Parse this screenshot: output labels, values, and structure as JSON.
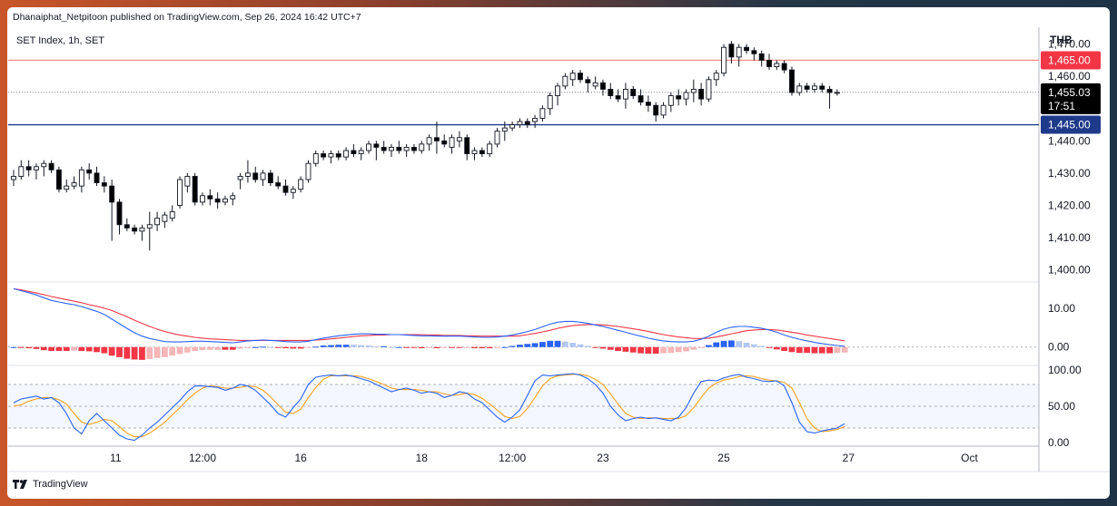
{
  "header": {
    "publisher": "Dhanaiphat_Netpitoon published on TradingView.com, Sep 26, 2024 16:42 UTC+7"
  },
  "footer": {
    "brand": "TradingView"
  },
  "colors": {
    "up": "#ffffff",
    "down": "#000000",
    "resistance": "#f2918d",
    "support": "#1e3a8a",
    "macd": "#2962ff",
    "signal": "#f23645",
    "hist_pos_strong": "#2962ff",
    "hist_pos_weak": "#b2c8f5",
    "hist_neg_strong": "#f23645",
    "hist_neg_weak": "#f7b6b8",
    "stoch_k": "#2962ff",
    "stoch_d": "#f6a21e",
    "label_resistance_bg": "#f23645",
    "label_support_bg": "#1e3a8a",
    "label_price_bg": "#000000"
  },
  "chart_data": {
    "type": "candlestick",
    "symbol_label": "SET Index, 1h, SET",
    "currency": "THB",
    "price_axis_ticks": [
      "1,470.00",
      "1,460.00",
      "1,450.00",
      "1,440.00",
      "1,430.00",
      "1,420.00",
      "1,410.00",
      "1,400.00"
    ],
    "price_axis_values": [
      1470,
      1460,
      1450,
      1440,
      1430,
      1420,
      1410,
      1400
    ],
    "ylim": [
      1396.5,
      1473
    ],
    "horizontal_lines": [
      {
        "price": 1465.0,
        "label": "1,465.00",
        "style": "resistance"
      },
      {
        "price": 1445.0,
        "label": "1,445.00",
        "style": "support"
      }
    ],
    "last_price": {
      "price": 1455.03,
      "label": "1,455.03",
      "countdown": "17:51"
    },
    "x_labels": [
      {
        "bar": 13.5,
        "text": "11"
      },
      {
        "bar": 25,
        "text": "12:00"
      },
      {
        "bar": 38,
        "text": "16"
      },
      {
        "bar": 54,
        "text": "18"
      },
      {
        "bar": 66,
        "text": "12:00"
      },
      {
        "bar": 78,
        "text": "23"
      },
      {
        "bar": 94,
        "text": "25"
      },
      {
        "bar": 110.5,
        "text": "27"
      },
      {
        "bar": 126.5,
        "text": "Oct"
      }
    ],
    "candles": [
      [
        1428,
        1431,
        1426,
        1429
      ],
      [
        1429,
        1434,
        1428,
        1432
      ],
      [
        1432,
        1434,
        1429,
        1431
      ],
      [
        1431,
        1433,
        1428,
        1432
      ],
      [
        1432,
        1434,
        1429,
        1433
      ],
      [
        1433,
        1434,
        1430,
        1431
      ],
      [
        1431,
        1432,
        1424,
        1425
      ],
      [
        1425,
        1428,
        1424,
        1426
      ],
      [
        1426,
        1429,
        1425,
        1427
      ],
      [
        1426,
        1432,
        1424,
        1431
      ],
      [
        1431,
        1433,
        1428,
        1430
      ],
      [
        1430,
        1432,
        1426,
        1427
      ],
      [
        1427,
        1429,
        1424,
        1426
      ],
      [
        1426,
        1428,
        1409,
        1421
      ],
      [
        1421,
        1422,
        1411,
        1414
      ],
      [
        1414,
        1416,
        1412,
        1413
      ],
      [
        1413,
        1414,
        1411,
        1412
      ],
      [
        1412,
        1414,
        1409,
        1413
      ],
      [
        1413,
        1418,
        1406,
        1414
      ],
      [
        1414,
        1418,
        1412,
        1416
      ],
      [
        1415,
        1418,
        1413,
        1417
      ],
      [
        1416,
        1420,
        1415,
        1418
      ],
      [
        1420,
        1429,
        1419,
        1428
      ],
      [
        1426,
        1430,
        1424,
        1429
      ],
      [
        1429,
        1430,
        1420,
        1421
      ],
      [
        1421,
        1424,
        1420,
        1423
      ],
      [
        1423,
        1425,
        1420,
        1422
      ],
      [
        1422,
        1424,
        1419,
        1421
      ],
      [
        1421,
        1423,
        1420,
        1422
      ],
      [
        1422,
        1424,
        1420,
        1423
      ],
      [
        1428,
        1430,
        1425,
        1429
      ],
      [
        1429,
        1434,
        1427,
        1430
      ],
      [
        1430,
        1432,
        1427,
        1428
      ],
      [
        1428,
        1431,
        1426,
        1430
      ],
      [
        1430,
        1431,
        1426,
        1427
      ],
      [
        1427,
        1429,
        1425,
        1426
      ],
      [
        1426,
        1428,
        1423,
        1424
      ],
      [
        1424,
        1426,
        1422,
        1425
      ],
      [
        1425,
        1429,
        1424,
        1428
      ],
      [
        1428,
        1434,
        1427,
        1433
      ],
      [
        1433,
        1437,
        1432,
        1436
      ],
      [
        1436,
        1437,
        1434,
        1435
      ],
      [
        1435,
        1437,
        1433,
        1436
      ],
      [
        1436,
        1437,
        1434,
        1435
      ],
      [
        1435,
        1438,
        1434,
        1437
      ],
      [
        1437,
        1439,
        1435,
        1436
      ],
      [
        1436,
        1438,
        1434,
        1437
      ],
      [
        1437,
        1440,
        1436,
        1439
      ],
      [
        1439,
        1440,
        1434,
        1438
      ],
      [
        1438,
        1440,
        1436,
        1437
      ],
      [
        1437,
        1439,
        1435,
        1438
      ],
      [
        1438,
        1440,
        1436,
        1437
      ],
      [
        1437,
        1439,
        1435,
        1438
      ],
      [
        1438,
        1439,
        1436,
        1437
      ],
      [
        1437,
        1440,
        1436,
        1439
      ],
      [
        1439,
        1442,
        1437,
        1441
      ],
      [
        1441,
        1446,
        1436,
        1440
      ],
      [
        1440,
        1442,
        1438,
        1439
      ],
      [
        1438,
        1442,
        1436,
        1441
      ],
      [
        1440,
        1443,
        1438,
        1441
      ],
      [
        1441,
        1442,
        1434,
        1436
      ],
      [
        1436,
        1438,
        1434,
        1437
      ],
      [
        1437,
        1438,
        1435,
        1436
      ],
      [
        1436,
        1440,
        1435,
        1439
      ],
      [
        1439,
        1444,
        1438,
        1443
      ],
      [
        1443,
        1446,
        1440,
        1444
      ],
      [
        1444,
        1446,
        1443,
        1445
      ],
      [
        1445,
        1447,
        1444,
        1446
      ],
      [
        1446,
        1447,
        1444,
        1445
      ],
      [
        1446,
        1448,
        1444,
        1447
      ],
      [
        1447,
        1451,
        1446,
        1450
      ],
      [
        1450,
        1455,
        1448,
        1454
      ],
      [
        1454,
        1458,
        1451,
        1457
      ],
      [
        1457,
        1461,
        1456,
        1460
      ],
      [
        1459,
        1462,
        1457,
        1461
      ],
      [
        1461,
        1462,
        1458,
        1459
      ],
      [
        1459,
        1460,
        1455,
        1458
      ],
      [
        1457,
        1460,
        1456,
        1458
      ],
      [
        1458,
        1459,
        1454,
        1456
      ],
      [
        1456,
        1458,
        1453,
        1454
      ],
      [
        1454,
        1456,
        1452,
        1453
      ],
      [
        1453,
        1458,
        1450,
        1456
      ],
      [
        1456,
        1457,
        1453,
        1454
      ],
      [
        1454,
        1456,
        1451,
        1452
      ],
      [
        1452,
        1454,
        1449,
        1451
      ],
      [
        1451,
        1452,
        1446,
        1448
      ],
      [
        1448,
        1452,
        1447,
        1451
      ],
      [
        1451,
        1455,
        1449,
        1454
      ],
      [
        1454,
        1456,
        1451,
        1453
      ],
      [
        1453,
        1456,
        1451,
        1455
      ],
      [
        1455,
        1459,
        1452,
        1456
      ],
      [
        1456,
        1458,
        1451,
        1453
      ],
      [
        1453,
        1460,
        1452,
        1459
      ],
      [
        1459,
        1462,
        1457,
        1461
      ],
      [
        1461,
        1470,
        1460,
        1469
      ],
      [
        1470,
        1471,
        1464,
        1466
      ],
      [
        1466,
        1470,
        1463,
        1469
      ],
      [
        1469,
        1470,
        1467,
        1468
      ],
      [
        1468,
        1469,
        1465,
        1467
      ],
      [
        1467,
        1468,
        1463,
        1465
      ],
      [
        1465,
        1467,
        1462,
        1463
      ],
      [
        1463,
        1465,
        1462,
        1464
      ],
      [
        1464,
        1465,
        1461,
        1462
      ],
      [
        1462,
        1463,
        1454,
        1455
      ],
      [
        1455,
        1458,
        1454,
        1457
      ],
      [
        1457,
        1458,
        1455,
        1456
      ],
      [
        1456,
        1458,
        1455,
        1457
      ],
      [
        1457,
        1458,
        1455,
        1456
      ],
      [
        1456,
        1457,
        1450,
        1455
      ],
      [
        1455,
        1456,
        1454,
        1455.03
      ]
    ],
    "macd": {
      "axis_ticks": [
        "10.00",
        "0.00"
      ],
      "axis_values": [
        10,
        0
      ],
      "ylim": [
        -4.5,
        16.5
      ],
      "line": [
        15.0,
        14.5,
        14.0,
        13.4,
        12.7,
        12.0,
        11.6,
        11.2,
        10.9,
        10.4,
        9.8,
        9.2,
        8.4,
        7.2,
        6.0,
        4.8,
        3.7,
        2.8,
        2.2,
        1.8,
        1.4,
        1.3,
        1.3,
        1.4,
        1.5,
        1.5,
        1.4,
        1.3,
        1.2,
        1.1,
        1.3,
        1.6,
        1.7,
        1.8,
        1.7,
        1.6,
        1.4,
        1.3,
        1.3,
        1.5,
        1.9,
        2.3,
        2.6,
        2.9,
        3.1,
        3.3,
        3.4,
        3.4,
        3.3,
        3.3,
        3.2,
        3.2,
        3.1,
        3.0,
        2.9,
        2.9,
        2.8,
        2.8,
        2.8,
        2.8,
        2.7,
        2.6,
        2.5,
        2.5,
        2.6,
        2.8,
        3.1,
        3.5,
        4.0,
        4.5,
        5.2,
        5.9,
        6.4,
        6.6,
        6.6,
        6.4,
        6.1,
        5.7,
        5.3,
        4.8,
        4.3,
        3.8,
        3.3,
        2.8,
        2.3,
        1.9,
        1.6,
        1.4,
        1.3,
        1.3,
        1.5,
        2.0,
        2.8,
        3.8,
        4.6,
        5.1,
        5.3,
        5.3,
        5.1,
        4.8,
        4.4,
        3.8,
        3.1,
        2.5,
        2.0,
        1.6,
        1.2,
        0.9,
        0.6,
        0.4,
        0.2
      ],
      "signal": [
        15.0,
        14.7,
        14.3,
        13.9,
        13.5,
        13.0,
        12.6,
        12.2,
        11.8,
        11.4,
        10.9,
        10.5,
        10.0,
        9.4,
        8.6,
        7.8,
        6.9,
        6.1,
        5.3,
        4.6,
        4.0,
        3.5,
        3.1,
        2.8,
        2.5,
        2.3,
        2.1,
        2.0,
        1.9,
        1.8,
        1.7,
        1.7,
        1.7,
        1.7,
        1.7,
        1.7,
        1.7,
        1.7,
        1.7,
        1.7,
        1.8,
        1.9,
        2.1,
        2.3,
        2.5,
        2.7,
        2.9,
        3.0,
        3.1,
        3.1,
        3.2,
        3.2,
        3.2,
        3.2,
        3.2,
        3.1,
        3.1,
        3.0,
        3.0,
        3.0,
        2.9,
        2.9,
        2.8,
        2.8,
        2.8,
        2.8,
        2.8,
        2.9,
        3.2,
        3.5,
        3.9,
        4.3,
        4.8,
        5.2,
        5.5,
        5.7,
        5.8,
        5.8,
        5.7,
        5.5,
        5.3,
        5.0,
        4.7,
        4.4,
        4.0,
        3.6,
        3.2,
        2.9,
        2.6,
        2.4,
        2.2,
        2.2,
        2.3,
        2.6,
        3.0,
        3.4,
        3.8,
        4.2,
        4.4,
        4.5,
        4.5,
        4.4,
        4.1,
        3.8,
        3.5,
        3.1,
        2.8,
        2.5,
        2.2,
        1.9,
        1.6
      ]
    },
    "stoch": {
      "axis_ticks": [
        "100.00",
        "50.00",
        "0.00"
      ],
      "axis_values": [
        100,
        50,
        0
      ],
      "levels": [
        80,
        50,
        20
      ],
      "ylim": [
        -5,
        105
      ],
      "k": [
        55,
        60,
        62,
        64,
        60,
        62,
        55,
        40,
        20,
        12,
        30,
        40,
        30,
        20,
        10,
        5,
        3,
        10,
        20,
        28,
        38,
        48,
        58,
        70,
        78,
        78,
        77,
        76,
        72,
        75,
        80,
        78,
        72,
        62,
        52,
        40,
        35,
        48,
        60,
        80,
        90,
        92,
        93,
        92,
        93,
        91,
        88,
        85,
        80,
        75,
        70,
        73,
        75,
        72,
        68,
        70,
        68,
        62,
        65,
        70,
        68,
        60,
        55,
        45,
        35,
        28,
        35,
        45,
        65,
        85,
        93,
        92,
        93,
        94,
        95,
        93,
        88,
        80,
        68,
        50,
        38,
        30,
        33,
        35,
        33,
        34,
        32,
        30,
        35,
        48,
        68,
        84,
        86,
        85,
        89,
        92,
        94,
        90,
        88,
        85,
        84,
        85,
        78,
        55,
        28,
        15,
        13,
        16,
        18,
        20,
        26
      ],
      "d": [
        50,
        52,
        57,
        60,
        62,
        62,
        59,
        53,
        40,
        28,
        25,
        28,
        32,
        30,
        22,
        13,
        8,
        8,
        13,
        20,
        28,
        38,
        48,
        59,
        68,
        75,
        78,
        77,
        75,
        75,
        76,
        78,
        77,
        72,
        63,
        52,
        42,
        40,
        46,
        62,
        76,
        87,
        92,
        92,
        92,
        92,
        91,
        88,
        84,
        80,
        75,
        73,
        73,
        73,
        72,
        70,
        70,
        67,
        65,
        66,
        68,
        66,
        61,
        53,
        45,
        36,
        33,
        36,
        47,
        62,
        78,
        88,
        92,
        93,
        94,
        94,
        92,
        87,
        80,
        67,
        53,
        40,
        35,
        33,
        34,
        34,
        33,
        33,
        33,
        37,
        48,
        62,
        75,
        82,
        86,
        88,
        91,
        92,
        91,
        88,
        86,
        85,
        83,
        75,
        55,
        33,
        20,
        15,
        16,
        18,
        22
      ]
    }
  }
}
